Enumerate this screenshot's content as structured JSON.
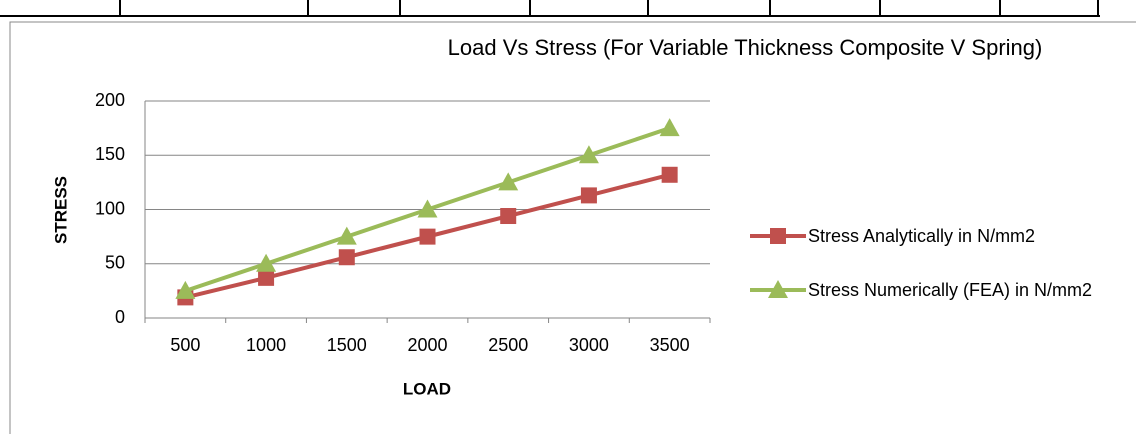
{
  "chart_data": {
    "type": "line",
    "title": "Load Vs Stress (For Variable Thickness Composite V Spring)",
    "x_label": "LOAD",
    "y_label": "STRESS",
    "categories": [
      500,
      1000,
      1500,
      2000,
      2500,
      3000,
      3500
    ],
    "series": [
      {
        "name": "Stress Analytically in N/mm2",
        "color": "#c0504d",
        "marker": "square",
        "values": [
          19,
          37,
          56,
          75,
          94,
          113,
          132
        ]
      },
      {
        "name": "Stress Numerically (FEA) in N/mm2",
        "color": "#9bbb59",
        "marker": "triangle",
        "values": [
          25,
          50,
          75,
          100,
          125,
          150,
          175
        ]
      }
    ],
    "ylim": [
      0,
      200
    ],
    "yticks": [
      0,
      50,
      100,
      150,
      200
    ],
    "grid": true,
    "legend": "right"
  }
}
